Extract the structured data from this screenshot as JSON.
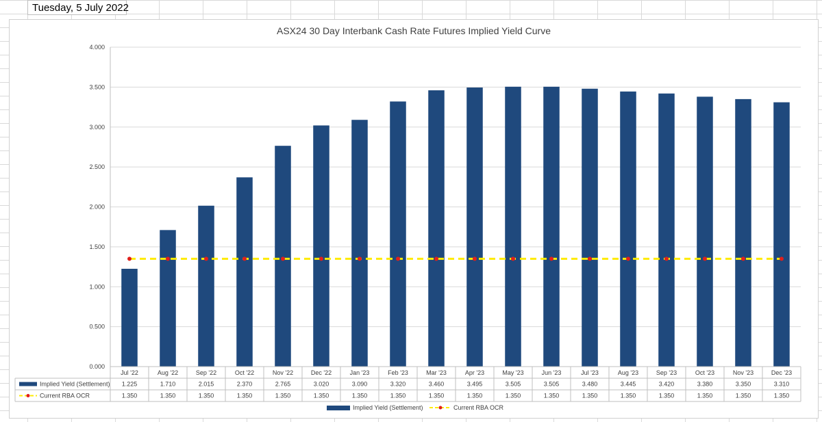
{
  "sheet": {
    "date_cell": "Tuesday, 5 July 2022"
  },
  "colors": {
    "bar": "#1f497d",
    "ocr_line": "#ffeb00",
    "ocr_marker": "#e0201b",
    "grid": "#d9d9d9",
    "text": "#404040"
  },
  "chart_data": {
    "type": "bar",
    "title": "ASX24 30 Day Interbank Cash Rate Futures Implied Yield Curve",
    "categories": [
      "Jul '22",
      "Aug '22",
      "Sep '22",
      "Oct '22",
      "Nov '22",
      "Dec '22",
      "Jan '23",
      "Feb '23",
      "Mar '23",
      "Apr '23",
      "May '23",
      "Jun '23",
      "Jul '23",
      "Aug '23",
      "Sep '23",
      "Oct '23",
      "Nov '23",
      "Dec '23"
    ],
    "series": [
      {
        "name": "Implied Yield (Settlement)",
        "kind": "bar",
        "values": [
          1.225,
          1.71,
          2.015,
          2.37,
          2.765,
          3.02,
          3.09,
          3.32,
          3.46,
          3.495,
          3.505,
          3.505,
          3.48,
          3.445,
          3.42,
          3.38,
          3.35,
          3.31
        ],
        "labels": [
          "1.225",
          "1.710",
          "2.015",
          "2.370",
          "2.765",
          "3.020",
          "3.090",
          "3.320",
          "3.460",
          "3.495",
          "3.505",
          "3.505",
          "3.480",
          "3.445",
          "3.420",
          "3.380",
          "3.350",
          "3.310"
        ]
      },
      {
        "name": "Current RBA OCR",
        "kind": "line",
        "values": [
          1.35,
          1.35,
          1.35,
          1.35,
          1.35,
          1.35,
          1.35,
          1.35,
          1.35,
          1.35,
          1.35,
          1.35,
          1.35,
          1.35,
          1.35,
          1.35,
          1.35,
          1.35
        ],
        "labels": [
          "1.350",
          "1.350",
          "1.350",
          "1.350",
          "1.350",
          "1.350",
          "1.350",
          "1.350",
          "1.350",
          "1.350",
          "1.350",
          "1.350",
          "1.350",
          "1.350",
          "1.350",
          "1.350",
          "1.350",
          "1.350"
        ]
      }
    ],
    "ylim": [
      0,
      4
    ],
    "yticks": [
      "0.000",
      "0.500",
      "1.000",
      "1.500",
      "2.000",
      "2.500",
      "3.000",
      "3.500",
      "4.000"
    ],
    "grid": true,
    "legend": "bottom",
    "data_table": true
  }
}
